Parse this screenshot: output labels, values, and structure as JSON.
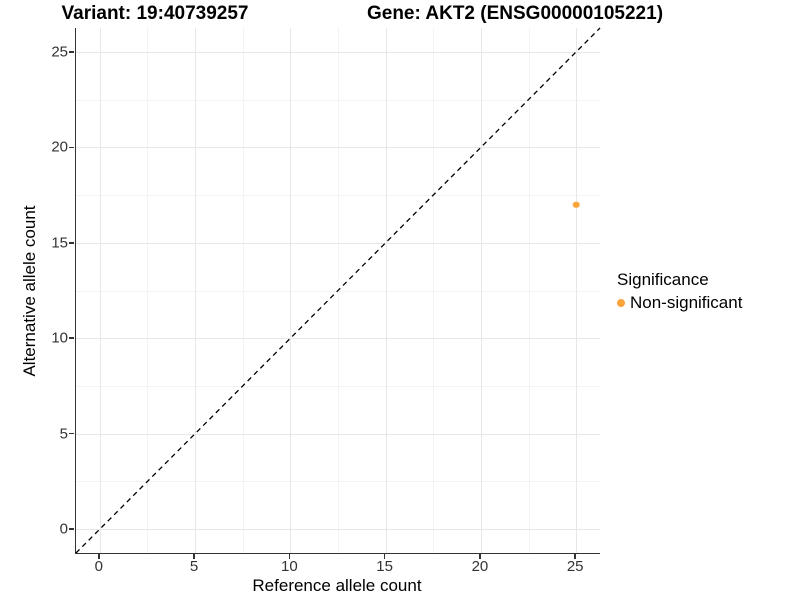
{
  "titles": {
    "variant": "Variant: 19:40739257",
    "gene": "Gene: AKT2 (ENSG00000105221)"
  },
  "axes": {
    "x": {
      "label": "Reference allele count"
    },
    "y": {
      "label": "Alternative allele count"
    }
  },
  "legend": {
    "title": "Significance",
    "items": [
      {
        "label": "Non-significant",
        "color": "#FCA33A"
      }
    ]
  },
  "chart_data": {
    "type": "scatter",
    "title": "Variant: 19:40739257 | Gene: AKT2 (ENSG00000105221)",
    "xlabel": "Reference allele count",
    "ylabel": "Alternative allele count",
    "xlim": [
      -1.25,
      26.25
    ],
    "ylim": [
      -1.25,
      26.25
    ],
    "x_ticks": [
      0,
      5,
      10,
      15,
      20,
      25
    ],
    "y_ticks": [
      0,
      5,
      10,
      15,
      20,
      25
    ],
    "minor_x": [
      2.5,
      7.5,
      12.5,
      17.5,
      22.5
    ],
    "minor_y": [
      2.5,
      7.5,
      12.5,
      17.5,
      22.5
    ],
    "grid": true,
    "legend_position": "right",
    "series": [
      {
        "name": "Non-significant",
        "color": "#FCA33A",
        "points": [
          {
            "x": 25,
            "y": 17
          }
        ]
      }
    ],
    "reference_line": {
      "kind": "identity y=x",
      "style": "dashed",
      "color": "#000000"
    },
    "point_radius_px": 3.3
  }
}
